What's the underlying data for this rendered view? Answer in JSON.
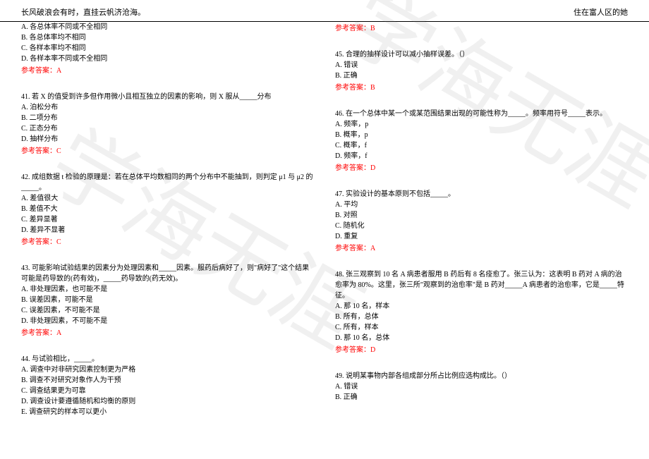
{
  "header": {
    "left": "长风破浪会有时，直挂云帆济沧海。",
    "right": "住在富人区的她"
  },
  "watermark": {
    "text1": "学海无涯",
    "text2": "学海无涯"
  },
  "left_column": {
    "q40": {
      "optA": "A. 各总体率不同或不全相同",
      "optB": "B. 各总体率均不相同",
      "optC": "C. 各样本率均不相同",
      "optD": "D. 各样本率不同或不全相同",
      "answer": "参考答案：A"
    },
    "q41": {
      "text": "41. 若 X 的值受到许多但作用微小且相互独立的因素的影响，则 X 服从_____分布",
      "optA": "A. 泊松分布",
      "optB": "B. 二项分布",
      "optC": "C. 正态分布",
      "optD": "D. 抽样分布",
      "answer": "参考答案：C"
    },
    "q42": {
      "text": "42. 成组数据 t 检验的原理是：若在总体平均数相同的两个分布中不能抽到，则判定 μ1 与 μ2 的_____。",
      "optA": "A. 差值很大",
      "optB": "B. 差值不大",
      "optC": "C. 差异显著",
      "optD": "D. 差异不显著",
      "answer": "参考答案：C"
    },
    "q43": {
      "text": "43. 可能影响试验结果的因素分为处理因素和_____因素。服药后病好了，则\"病好了\"这个结果可能是药导致的(药有效)，_____药导致的(药无效)。",
      "optA": "A. 非处理因素，也可能不是",
      "optB": "B. 误差因素，可能不是",
      "optC": "C. 误差因素，不可能不是",
      "optD": "D. 非处理因素，不可能不是",
      "answer": "参考答案：A"
    },
    "q44": {
      "text": "44. 与试验相比，_____。",
      "optA": "A. 调查中对非研究因素控制更为严格",
      "optB": "B. 调查不对研究对象作人为干预",
      "optC": "C. 调查结果更为可靠",
      "optD": "D. 调查设计要遵循随机和均衡的原则",
      "optE": "E. 调查研究的样本可以更小"
    }
  },
  "right_column": {
    "q44_answer": "参考答案：B",
    "q45": {
      "text": "45. 合理的抽样设计可以减小抽样误差。（）",
      "optA": "A. 错误",
      "optB": "B. 正确",
      "answer": "参考答案：B"
    },
    "q46": {
      "text": "46. 在一个总体中某一个或某范围结果出现的可能性称为_____。频率用符号_____表示。",
      "optA": "A. 频率，p",
      "optB": "B. 概率，p",
      "optC": "C. 概率，f",
      "optD": "D. 频率，f",
      "answer": "参考答案：D"
    },
    "q47": {
      "text": "47. 实验设计的基本原则不包括_____。",
      "optA": "A. 平均",
      "optB": "B. 对照",
      "optC": "C. 随机化",
      "optD": "D. 重复",
      "answer": "参考答案：A"
    },
    "q48": {
      "text": "48. 张三观察到 10 名 A 病患者服用 B 药后有 8 名痊愈了。张三认为：这表明 B 药对 A 病的治愈率为 80%。这里，张三所\"观察到的治愈率\"是 B 药对_____A 病患者的治愈率，它是_____特征。",
      "optA": "A. 那 10 名，样本",
      "optB": "B. 所有，总体",
      "optC": "C. 所有，样本",
      "optD": "D. 那 10 名，总体",
      "answer": "参考答案：D"
    },
    "q49": {
      "text": "49. 说明某事物内部各组成部分所占比例应选构成比。（）",
      "optA": "A. 错误",
      "optB": "B. 正确"
    }
  }
}
